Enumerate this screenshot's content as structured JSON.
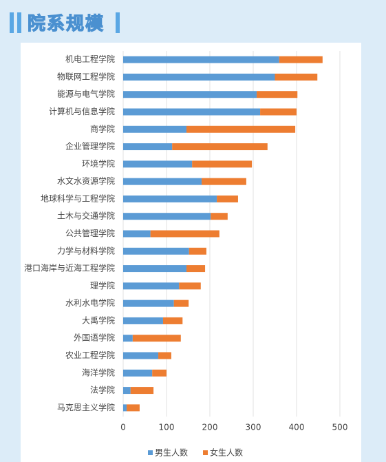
{
  "chart_data": {
    "type": "stacked-bar",
    "title": "院系规模",
    "categories": [
      "机电工程学院",
      "物联网工程学院",
      "能源与电气学院",
      "计算机与信息学院",
      "商学院",
      "企业管理学院",
      "环境学院",
      "水文水资源学院",
      "地球科学与工程学院",
      "土木与交通学院",
      "公共管理学院",
      "力学与材料学院",
      "港口海岸与近海工程学院",
      "理学院",
      "水利水电学院",
      "大禹学院",
      "外国语学院",
      "农业工程学院",
      "海洋学院",
      "法学院",
      "马克思主义学院"
    ],
    "series": [
      {
        "name": "男生人数",
        "color": "#5b9bd5",
        "values": [
          360,
          350,
          308,
          316,
          146,
          113,
          159,
          181,
          216,
          202,
          63,
          152,
          146,
          129,
          117,
          92,
          22,
          81,
          67,
          17,
          8
        ]
      },
      {
        "name": "女生人数",
        "color": "#ed7d31",
        "values": [
          100,
          98,
          94,
          84,
          251,
          220,
          138,
          103,
          49,
          39,
          159,
          40,
          43,
          50,
          34,
          45,
          111,
          30,
          33,
          53,
          30
        ]
      }
    ],
    "xlim": [
      0,
      550
    ],
    "xticks": [
      0,
      100,
      200,
      300,
      400,
      500
    ],
    "grid": true,
    "legend": "bottom"
  }
}
